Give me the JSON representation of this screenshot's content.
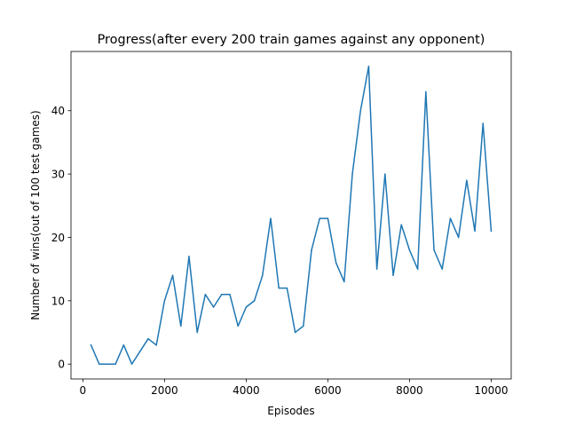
{
  "chart_data": {
    "type": "line",
    "title": "Progress(after every 200 train games against any opponent)",
    "xlabel": "Episodes",
    "ylabel": "Number of wins(out of 100 test games)",
    "xlim": [
      -290,
      10490
    ],
    "ylim": [
      -2.35,
      49.35
    ],
    "xticks": [
      0,
      2000,
      4000,
      6000,
      8000,
      10000
    ],
    "yticks": [
      0,
      10,
      20,
      30,
      40
    ],
    "xtick_labels": [
      "0",
      "2000",
      "4000",
      "6000",
      "8000",
      "10000"
    ],
    "ytick_labels": [
      "0",
      "10",
      "20",
      "30",
      "40"
    ],
    "grid": false,
    "legend": "none",
    "series": [
      {
        "color": "#1f77b4",
        "x": [
          200,
          400,
          600,
          800,
          1000,
          1200,
          1400,
          1600,
          1800,
          2000,
          2200,
          2400,
          2600,
          2800,
          3000,
          3200,
          3400,
          3600,
          3800,
          4000,
          4200,
          4400,
          4600,
          4800,
          5000,
          5200,
          5400,
          5600,
          5800,
          6000,
          6200,
          6400,
          6600,
          6800,
          7000,
          7200,
          7400,
          7600,
          7800,
          8000,
          8200,
          8400,
          8600,
          8800,
          9000,
          9200,
          9400,
          9600,
          9800,
          10000
        ],
        "y": [
          3,
          0,
          0,
          0,
          3,
          0,
          2,
          4,
          3,
          10,
          14,
          6,
          17,
          5,
          11,
          9,
          11,
          11,
          6,
          9,
          10,
          14,
          23,
          12,
          12,
          5,
          6,
          18,
          23,
          23,
          16,
          13,
          30,
          40,
          47,
          15,
          30,
          14,
          22,
          18,
          15,
          43,
          18,
          15,
          23,
          20,
          29,
          21,
          38,
          21
        ]
      }
    ]
  }
}
